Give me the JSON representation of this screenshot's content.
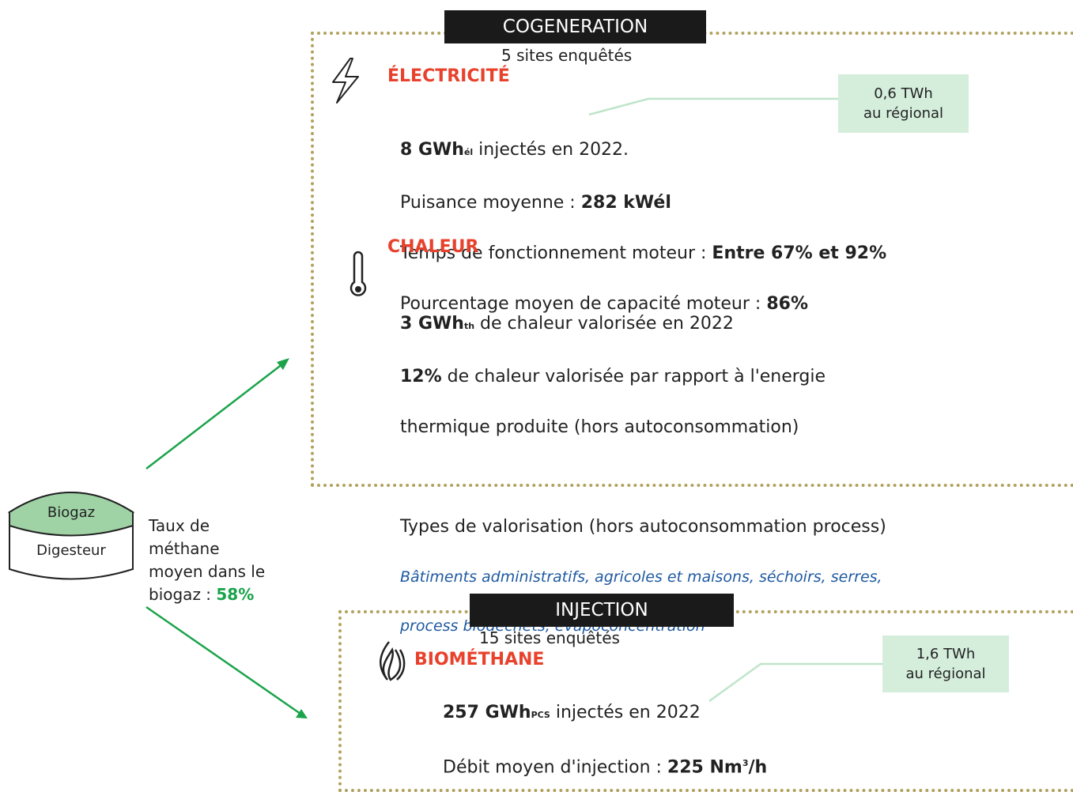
{
  "digester": {
    "top": "Biogaz",
    "bottom": "Digesteur"
  },
  "methane": {
    "lines": [
      "Taux de",
      "méthane",
      "moyen dans le"
    ],
    "last": "biogaz : ",
    "value": "58%"
  },
  "cogeneration": {
    "title": "COGENERATION",
    "sites": "5 sites enquêtés",
    "electricity": {
      "heading": "ÉLECTRICITÉ",
      "callout": [
        "0,6 TWh",
        "au régional"
      ],
      "injected": {
        "value": "8 GWh",
        "unit": "él",
        "text": " injectés en 2022."
      },
      "power": {
        "label": "Puisance moyenne : ",
        "value": "282 kWél"
      },
      "runtime": {
        "label": "Temps de fonctionnement moteur : ",
        "value": "Entre 67% et 92%"
      },
      "capacity": {
        "label": "Pourcentage moyen de capacité moteur : ",
        "value": "86%"
      }
    },
    "heat": {
      "heading": "CHALEUR",
      "valorised": {
        "value": "3 GWh",
        "unit": "th",
        "text": " de chaleur valorisée en 2022"
      },
      "share": {
        "value": "12%",
        "text": " de chaleur valorisée par rapport à l'energie",
        "text2": "thermique produite (hors autoconsommation)"
      },
      "types": {
        "label": "Types de valorisation (hors autoconsommation process)",
        "list": [
          "Bâtiments administratifs, agricoles et maisons, séchoirs, serres,",
          "process biodéchets, évapoconcentration"
        ]
      }
    }
  },
  "injection": {
    "title": "INJECTION",
    "sites": "15 sites enquêtés",
    "heading": "BIOMÉTHANE",
    "callout": [
      "1,6 TWh",
      "au régional"
    ],
    "injected": {
      "value": "257 GWh",
      "unit": "PCS",
      "text": " injectés en 2022"
    },
    "flow": {
      "label": "Débit moyen d'injection : ",
      "value": "225 Nm",
      "sup": "3",
      "suffix": "/h"
    }
  }
}
